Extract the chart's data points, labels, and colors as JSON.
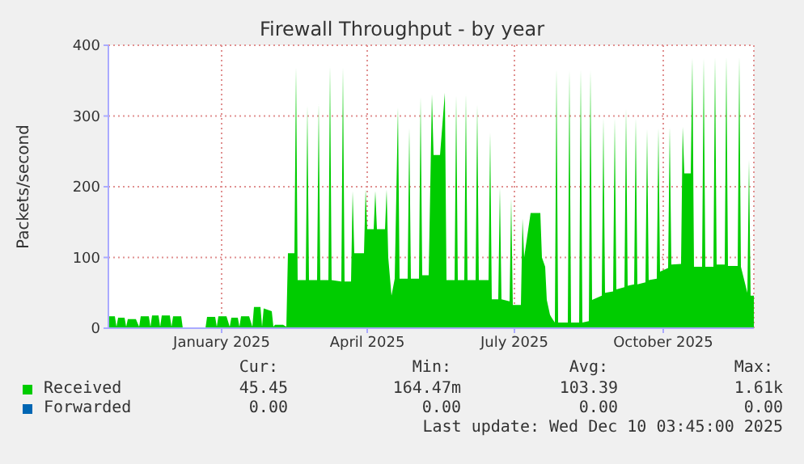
{
  "chart_data": {
    "type": "area",
    "title": "Firewall Throughput - by year",
    "ylabel": "Packets/second",
    "xlim": [
      "2024-10-23",
      "2025-11-26"
    ],
    "xticks": [
      {
        "value": "2025-01-01",
        "label": "January 2025"
      },
      {
        "value": "2025-04-01",
        "label": "April 2025"
      },
      {
        "value": "2025-07-01",
        "label": "July 2025"
      },
      {
        "value": "2025-10-01",
        "label": "October 2025"
      }
    ],
    "ylim": [
      0,
      400
    ],
    "yticks": [
      0,
      100,
      200,
      300,
      400
    ],
    "grid": true,
    "legend": "bottom",
    "series": [
      {
        "name": "Received",
        "color": "#00cc00",
        "x": [
          "2024-10-23",
          "2024-10-27",
          "2024-10-28",
          "2024-10-29",
          "2024-11-02",
          "2024-11-03",
          "2024-11-04",
          "2024-11-09",
          "2024-11-11",
          "2024-11-12",
          "2024-11-17",
          "2024-11-18",
          "2024-11-19",
          "2024-11-23",
          "2024-11-24",
          "2024-11-25",
          "2024-11-30",
          "2024-12-01",
          "2024-12-02",
          "2024-12-07",
          "2024-12-08",
          "2024-12-22",
          "2024-12-23",
          "2024-12-28",
          "2024-12-29",
          "2024-12-30",
          "2025-01-04",
          "2025-01-06",
          "2025-01-07",
          "2025-01-11",
          "2025-01-12",
          "2025-01-13",
          "2025-01-18",
          "2025-01-20",
          "2025-01-21",
          "2025-01-25",
          "2025-01-26",
          "2025-01-27",
          "2025-02-01",
          "2025-02-02",
          "2025-02-03",
          "2025-02-08",
          "2025-02-10",
          "2025-02-11",
          "2025-02-15",
          "2025-02-16",
          "2025-02-17",
          "2025-02-22",
          "2025-02-23",
          "2025-02-24",
          "2025-03-01",
          "2025-03-02",
          "2025-03-03",
          "2025-03-08",
          "2025-03-09",
          "2025-03-10",
          "2025-03-16",
          "2025-03-17",
          "2025-03-18",
          "2025-03-22",
          "2025-03-23",
          "2025-03-24",
          "2025-03-30",
          "2025-03-31",
          "2025-04-01",
          "2025-04-05",
          "2025-04-06",
          "2025-04-07",
          "2025-04-12",
          "2025-04-13",
          "2025-04-14",
          "2025-04-16",
          "2025-04-18",
          "2025-04-20",
          "2025-04-21",
          "2025-04-26",
          "2025-04-27",
          "2025-04-28",
          "2025-05-03",
          "2025-05-04",
          "2025-05-05",
          "2025-05-09",
          "2025-05-11",
          "2025-05-12",
          "2025-05-16",
          "2025-05-19",
          "2025-05-20",
          "2025-05-25",
          "2025-05-26",
          "2025-05-27",
          "2025-05-31",
          "2025-06-01",
          "2025-06-02",
          "2025-06-07",
          "2025-06-08",
          "2025-06-09",
          "2025-06-15",
          "2025-06-16",
          "2025-06-17",
          "2025-06-21",
          "2025-06-22",
          "2025-06-23",
          "2025-06-28",
          "2025-06-29",
          "2025-06-30",
          "2025-07-05",
          "2025-07-06",
          "2025-07-07",
          "2025-07-11",
          "2025-07-17",
          "2025-07-18",
          "2025-07-20",
          "2025-07-21",
          "2025-07-23",
          "2025-07-24",
          "2025-07-26",
          "2025-07-27",
          "2025-07-28",
          "2025-08-03",
          "2025-08-04",
          "2025-08-05",
          "2025-08-10",
          "2025-08-11",
          "2025-08-12",
          "2025-08-16",
          "2025-08-17",
          "2025-08-18",
          "2025-08-24",
          "2025-08-25",
          "2025-08-26",
          "2025-08-31",
          "2025-09-01",
          "2025-09-02",
          "2025-09-07",
          "2025-09-08",
          "2025-09-09",
          "2025-09-13",
          "2025-09-14",
          "2025-09-15",
          "2025-09-20",
          "2025-09-21",
          "2025-09-22",
          "2025-09-27",
          "2025-09-28",
          "2025-09-29",
          "2025-10-04",
          "2025-10-05",
          "2025-10-06",
          "2025-10-12",
          "2025-10-13",
          "2025-10-14",
          "2025-10-18",
          "2025-10-19",
          "2025-10-20",
          "2025-10-25",
          "2025-10-26",
          "2025-10-27",
          "2025-11-01",
          "2025-11-02",
          "2025-11-03",
          "2025-11-08",
          "2025-11-09",
          "2025-11-10",
          "2025-11-16",
          "2025-11-17",
          "2025-11-18",
          "2025-11-22",
          "2025-11-23",
          "2025-11-24",
          "2025-11-26"
        ],
        "values": [
          17,
          17,
          2,
          15,
          15,
          2,
          13,
          13,
          2,
          17,
          17,
          2,
          18,
          18,
          2,
          18,
          18,
          2,
          17,
          17,
          0,
          0,
          16,
          16,
          2,
          17,
          17,
          2,
          15,
          15,
          2,
          17,
          17,
          2,
          30,
          30,
          2,
          28,
          24,
          2,
          5,
          5,
          2,
          106,
          106,
          369,
          68,
          68,
          315,
          68,
          68,
          318,
          68,
          68,
          371,
          68,
          66,
          369,
          66,
          66,
          194,
          106,
          106,
          197,
          140,
          140,
          194,
          140,
          140,
          196,
          100,
          46,
          70,
          312,
          70,
          70,
          283,
          70,
          70,
          327,
          75,
          75,
          331,
          245,
          245,
          333,
          68,
          68,
          329,
          68,
          68,
          331,
          68,
          68,
          316,
          68,
          68,
          277,
          41,
          41,
          199,
          41,
          38,
          184,
          33,
          33,
          155,
          100,
          163,
          163,
          100,
          87,
          40,
          19,
          15,
          8,
          366,
          8,
          8,
          365,
          8,
          8,
          366,
          8,
          10,
          365,
          40,
          46,
          297,
          50,
          52,
          297,
          55,
          58,
          310,
          60,
          62,
          297,
          62,
          65,
          281,
          68,
          70,
          283,
          80,
          85,
          285,
          90,
          91,
          285,
          219,
          219,
          382,
          87,
          87,
          382,
          87,
          87,
          384,
          90,
          90,
          384,
          88,
          88,
          384,
          87,
          50,
          238,
          46,
          46
        ]
      },
      {
        "name": "Forwarded",
        "color": "#0066b3"
      }
    ],
    "annotations": [
      "Cur:",
      "Min:",
      "Avg:",
      "Max:",
      "45.45",
      "164.47m",
      "103.39",
      "1.61k",
      "0.00",
      "0.00",
      "0.00",
      "0.00",
      "Last update: Wed Dec 10 03:45:00 2025"
    ]
  }
}
